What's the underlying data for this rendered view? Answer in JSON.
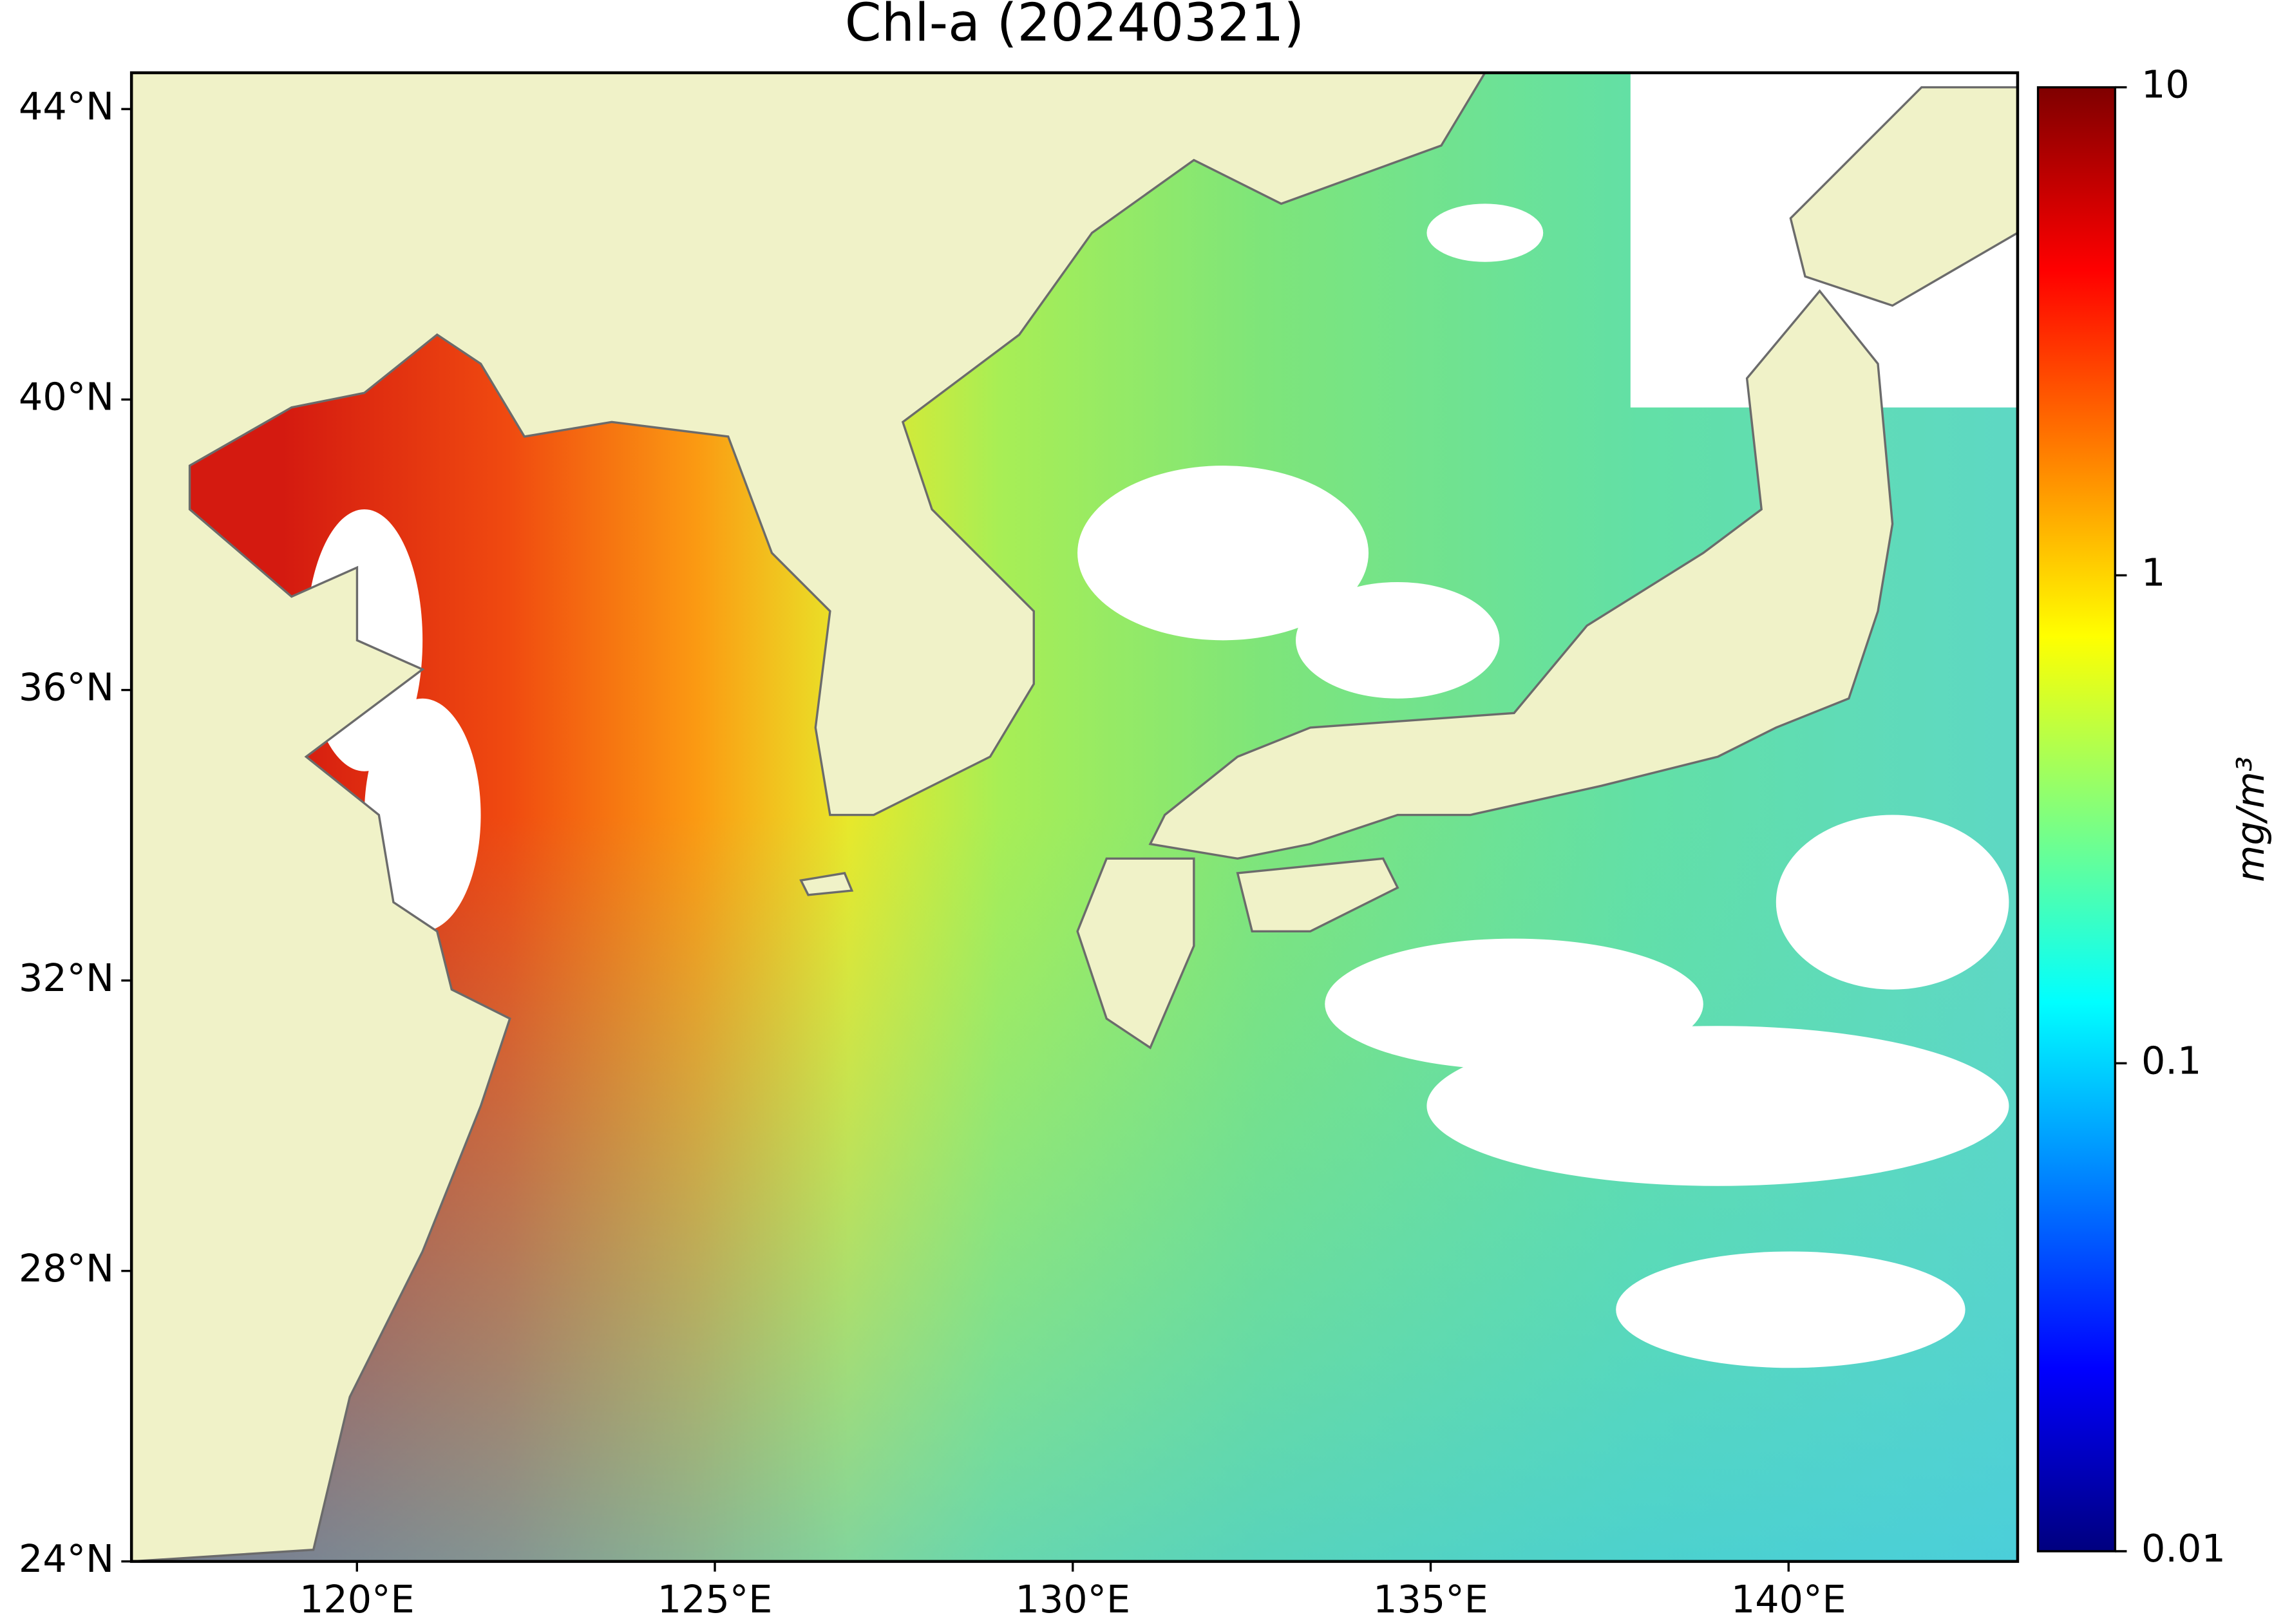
{
  "chart_data": {
    "type": "map",
    "title": "Chl-a (20240321)",
    "xlim": [
      116.85,
      143.2
    ],
    "ylim": [
      24,
      44.5
    ],
    "xticks": [
      {
        "value": 120,
        "label": "120°E"
      },
      {
        "value": 125,
        "label": "125°E"
      },
      {
        "value": 130,
        "label": "130°E"
      },
      {
        "value": 135,
        "label": "135°E"
      },
      {
        "value": 140,
        "label": "140°E"
      }
    ],
    "yticks": [
      {
        "value": 24,
        "label": "24°N"
      },
      {
        "value": 28,
        "label": "28°N"
      },
      {
        "value": 32,
        "label": "32°N"
      },
      {
        "value": 36,
        "label": "36°N"
      },
      {
        "value": 40,
        "label": "40°N"
      },
      {
        "value": 44,
        "label": "44°N"
      }
    ],
    "colorbar": {
      "label": "mg/m³",
      "scale": "log",
      "colormap": "jet",
      "lim": [
        0.01,
        10
      ],
      "ticks": [
        0.01,
        0.1,
        1,
        10
      ]
    }
  }
}
